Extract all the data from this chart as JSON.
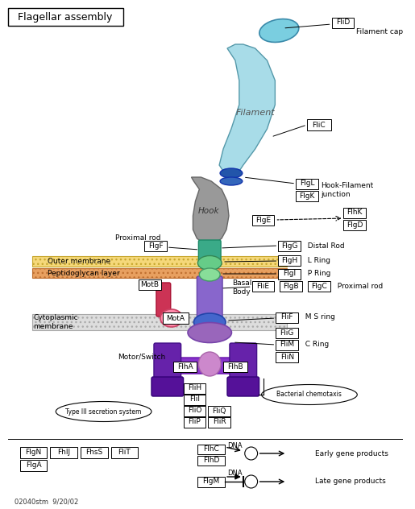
{
  "title": "Flagellar assembly",
  "bg_color": "#ffffff",
  "filament_cap_label": "FliD",
  "filament_cap_text": "Filament cap",
  "filament_label": "FliC",
  "filament_text": "Filament",
  "hook_filament_labels": [
    "FlgL",
    "FlgK"
  ],
  "hook_filament_text": "Hook-Filament\njunction",
  "hook_text": "Hook",
  "flgE_label": "FlgE",
  "flhK_flgD_labels": [
    "FlhK",
    "FlgD"
  ],
  "proximal_rod_label": "FlgF",
  "proximal_rod_text": "Proximal rod",
  "outer_membrane_text": "Outer membrane",
  "peptidoglycan_text": "Peptidoglycan layer",
  "flgG_label": "FlgG",
  "flgG_text": "Distal Rod",
  "flgH_label": "FlgH",
  "flgH_text": "L Ring",
  "flgI_label": "FlgI",
  "flgI_text": "P Ring",
  "motB_label": "MotB",
  "basal_body_text": "Basal\nBody",
  "fliE_label": "FliE",
  "flgB_label": "FlgB",
  "flgC_label": "FlgC",
  "proximal_rod_right_text": "Proximal rod",
  "cytoplasmic_text": "Cytoplasmic\nmembrane",
  "motA_label": "MotA",
  "fliF_label": "FliF",
  "fliF_text": "M S ring",
  "fliG_label": "FliG",
  "fliM_label": "FliM",
  "fliN_label": "FliN",
  "c_ring_text": "C Ring",
  "motor_switch_text": "Motor/Switch",
  "flhA_label": "FlhA",
  "flhB_label": "FlhB",
  "fliH_label": "FliH",
  "fliI_label": "FliI",
  "fliO_label": "FliO",
  "fliQ_label": "FliQ",
  "fliP_label": "FliP",
  "fliR_label": "FliR",
  "type3_text": "Type III secretion system",
  "bacterial_text": "Bacterial chemotaxis",
  "bottom_left_labels": [
    "FlgN",
    "FhlJ",
    "FhsS",
    "FliT"
  ],
  "bottom_left_labels2": [
    "FlgA"
  ],
  "flhC_label": "FlhC",
  "flhD_label": "FlhD",
  "flgM_label": "FlgM",
  "early_text": "Early gene products",
  "late_text": "Late gene products",
  "dna_text": "DNA",
  "footer": "02040stm  9/20/02"
}
